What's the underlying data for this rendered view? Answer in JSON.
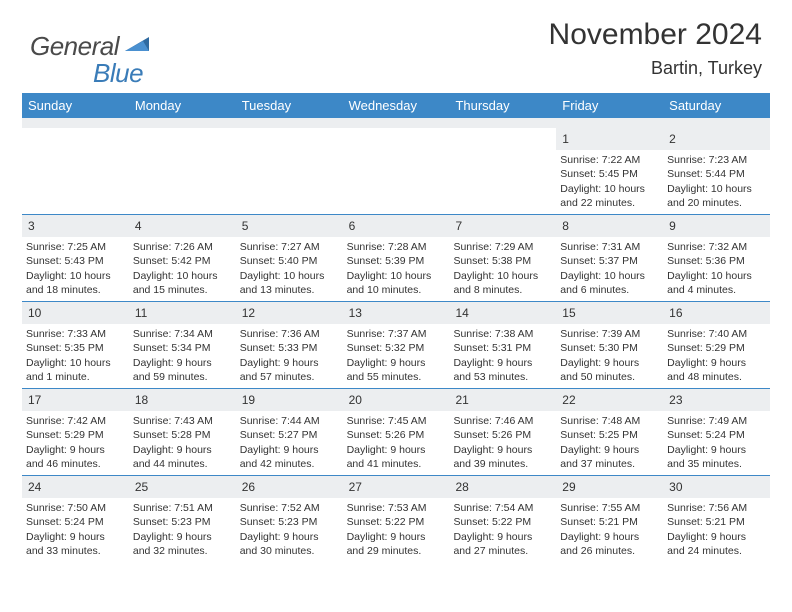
{
  "brand": {
    "part1": "General",
    "part2": "Blue"
  },
  "title": "November 2024",
  "location": "Bartin, Turkey",
  "colors": {
    "header_bg": "#3d88c7",
    "header_text": "#ffffff",
    "daynum_bg": "#eceef0",
    "border": "#3d88c7",
    "text": "#333333",
    "logo_gray": "#4a4a4a",
    "logo_blue": "#3a7cb8"
  },
  "weekdays": [
    "Sunday",
    "Monday",
    "Tuesday",
    "Wednesday",
    "Thursday",
    "Friday",
    "Saturday"
  ],
  "weeks": [
    [
      {
        "n": "",
        "empty": true
      },
      {
        "n": "",
        "empty": true
      },
      {
        "n": "",
        "empty": true
      },
      {
        "n": "",
        "empty": true
      },
      {
        "n": "",
        "empty": true
      },
      {
        "n": "1",
        "sunrise": "Sunrise: 7:22 AM",
        "sunset": "Sunset: 5:45 PM",
        "daylight1": "Daylight: 10 hours",
        "daylight2": "and 22 minutes."
      },
      {
        "n": "2",
        "sunrise": "Sunrise: 7:23 AM",
        "sunset": "Sunset: 5:44 PM",
        "daylight1": "Daylight: 10 hours",
        "daylight2": "and 20 minutes."
      }
    ],
    [
      {
        "n": "3",
        "sunrise": "Sunrise: 7:25 AM",
        "sunset": "Sunset: 5:43 PM",
        "daylight1": "Daylight: 10 hours",
        "daylight2": "and 18 minutes."
      },
      {
        "n": "4",
        "sunrise": "Sunrise: 7:26 AM",
        "sunset": "Sunset: 5:42 PM",
        "daylight1": "Daylight: 10 hours",
        "daylight2": "and 15 minutes."
      },
      {
        "n": "5",
        "sunrise": "Sunrise: 7:27 AM",
        "sunset": "Sunset: 5:40 PM",
        "daylight1": "Daylight: 10 hours",
        "daylight2": "and 13 minutes."
      },
      {
        "n": "6",
        "sunrise": "Sunrise: 7:28 AM",
        "sunset": "Sunset: 5:39 PM",
        "daylight1": "Daylight: 10 hours",
        "daylight2": "and 10 minutes."
      },
      {
        "n": "7",
        "sunrise": "Sunrise: 7:29 AM",
        "sunset": "Sunset: 5:38 PM",
        "daylight1": "Daylight: 10 hours",
        "daylight2": "and 8 minutes."
      },
      {
        "n": "8",
        "sunrise": "Sunrise: 7:31 AM",
        "sunset": "Sunset: 5:37 PM",
        "daylight1": "Daylight: 10 hours",
        "daylight2": "and 6 minutes."
      },
      {
        "n": "9",
        "sunrise": "Sunrise: 7:32 AM",
        "sunset": "Sunset: 5:36 PM",
        "daylight1": "Daylight: 10 hours",
        "daylight2": "and 4 minutes."
      }
    ],
    [
      {
        "n": "10",
        "sunrise": "Sunrise: 7:33 AM",
        "sunset": "Sunset: 5:35 PM",
        "daylight1": "Daylight: 10 hours",
        "daylight2": "and 1 minute."
      },
      {
        "n": "11",
        "sunrise": "Sunrise: 7:34 AM",
        "sunset": "Sunset: 5:34 PM",
        "daylight1": "Daylight: 9 hours",
        "daylight2": "and 59 minutes."
      },
      {
        "n": "12",
        "sunrise": "Sunrise: 7:36 AM",
        "sunset": "Sunset: 5:33 PM",
        "daylight1": "Daylight: 9 hours",
        "daylight2": "and 57 minutes."
      },
      {
        "n": "13",
        "sunrise": "Sunrise: 7:37 AM",
        "sunset": "Sunset: 5:32 PM",
        "daylight1": "Daylight: 9 hours",
        "daylight2": "and 55 minutes."
      },
      {
        "n": "14",
        "sunrise": "Sunrise: 7:38 AM",
        "sunset": "Sunset: 5:31 PM",
        "daylight1": "Daylight: 9 hours",
        "daylight2": "and 53 minutes."
      },
      {
        "n": "15",
        "sunrise": "Sunrise: 7:39 AM",
        "sunset": "Sunset: 5:30 PM",
        "daylight1": "Daylight: 9 hours",
        "daylight2": "and 50 minutes."
      },
      {
        "n": "16",
        "sunrise": "Sunrise: 7:40 AM",
        "sunset": "Sunset: 5:29 PM",
        "daylight1": "Daylight: 9 hours",
        "daylight2": "and 48 minutes."
      }
    ],
    [
      {
        "n": "17",
        "sunrise": "Sunrise: 7:42 AM",
        "sunset": "Sunset: 5:29 PM",
        "daylight1": "Daylight: 9 hours",
        "daylight2": "and 46 minutes."
      },
      {
        "n": "18",
        "sunrise": "Sunrise: 7:43 AM",
        "sunset": "Sunset: 5:28 PM",
        "daylight1": "Daylight: 9 hours",
        "daylight2": "and 44 minutes."
      },
      {
        "n": "19",
        "sunrise": "Sunrise: 7:44 AM",
        "sunset": "Sunset: 5:27 PM",
        "daylight1": "Daylight: 9 hours",
        "daylight2": "and 42 minutes."
      },
      {
        "n": "20",
        "sunrise": "Sunrise: 7:45 AM",
        "sunset": "Sunset: 5:26 PM",
        "daylight1": "Daylight: 9 hours",
        "daylight2": "and 41 minutes."
      },
      {
        "n": "21",
        "sunrise": "Sunrise: 7:46 AM",
        "sunset": "Sunset: 5:26 PM",
        "daylight1": "Daylight: 9 hours",
        "daylight2": "and 39 minutes."
      },
      {
        "n": "22",
        "sunrise": "Sunrise: 7:48 AM",
        "sunset": "Sunset: 5:25 PM",
        "daylight1": "Daylight: 9 hours",
        "daylight2": "and 37 minutes."
      },
      {
        "n": "23",
        "sunrise": "Sunrise: 7:49 AM",
        "sunset": "Sunset: 5:24 PM",
        "daylight1": "Daylight: 9 hours",
        "daylight2": "and 35 minutes."
      }
    ],
    [
      {
        "n": "24",
        "sunrise": "Sunrise: 7:50 AM",
        "sunset": "Sunset: 5:24 PM",
        "daylight1": "Daylight: 9 hours",
        "daylight2": "and 33 minutes."
      },
      {
        "n": "25",
        "sunrise": "Sunrise: 7:51 AM",
        "sunset": "Sunset: 5:23 PM",
        "daylight1": "Daylight: 9 hours",
        "daylight2": "and 32 minutes."
      },
      {
        "n": "26",
        "sunrise": "Sunrise: 7:52 AM",
        "sunset": "Sunset: 5:23 PM",
        "daylight1": "Daylight: 9 hours",
        "daylight2": "and 30 minutes."
      },
      {
        "n": "27",
        "sunrise": "Sunrise: 7:53 AM",
        "sunset": "Sunset: 5:22 PM",
        "daylight1": "Daylight: 9 hours",
        "daylight2": "and 29 minutes."
      },
      {
        "n": "28",
        "sunrise": "Sunrise: 7:54 AM",
        "sunset": "Sunset: 5:22 PM",
        "daylight1": "Daylight: 9 hours",
        "daylight2": "and 27 minutes."
      },
      {
        "n": "29",
        "sunrise": "Sunrise: 7:55 AM",
        "sunset": "Sunset: 5:21 PM",
        "daylight1": "Daylight: 9 hours",
        "daylight2": "and 26 minutes."
      },
      {
        "n": "30",
        "sunrise": "Sunrise: 7:56 AM",
        "sunset": "Sunset: 5:21 PM",
        "daylight1": "Daylight: 9 hours",
        "daylight2": "and 24 minutes."
      }
    ]
  ]
}
